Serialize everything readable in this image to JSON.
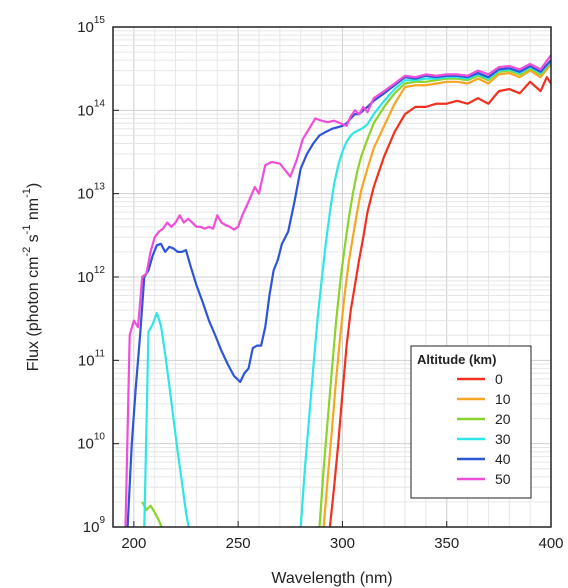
{
  "chart_data": {
    "type": "line",
    "xlabel": "Wavelength (nm)",
    "ylabel": {
      "parts": [
        "Flux (photon cm",
        "-2",
        " s",
        "-1",
        " nm",
        "-1",
        ")"
      ]
    },
    "xlim": [
      190,
      400
    ],
    "ylim": [
      1000000000.0,
      1000000000000000.0
    ],
    "yscale": "log",
    "grid": true,
    "xticks": [
      "200",
      "250",
      "300",
      "350",
      "400"
    ],
    "yticks": [
      {
        "base": "10",
        "exp": "9"
      },
      {
        "base": "10",
        "exp": "10"
      },
      {
        "base": "10",
        "exp": "11"
      },
      {
        "base": "10",
        "exp": "12"
      },
      {
        "base": "10",
        "exp": "13"
      },
      {
        "base": "10",
        "exp": "14"
      },
      {
        "base": "10",
        "exp": "15"
      }
    ],
    "legend": {
      "title": "Altitude (km)",
      "position": "bottom-right"
    },
    "series": [
      {
        "name": "0",
        "color": "#f2301f",
        "x": [
          294,
          296,
          298,
          300,
          302,
          304,
          306,
          308,
          310,
          312,
          315,
          320,
          325,
          330,
          335,
          340,
          345,
          350,
          355,
          360,
          365,
          370,
          375,
          380,
          385,
          390,
          395,
          398,
          400
        ],
        "y": [
          1000000000.0,
          3000000000.0,
          10000000000.0,
          40000000000.0,
          150000000000.0,
          400000000000.0,
          800000000000.0,
          1600000000000.0,
          3000000000000.0,
          6000000000000.0,
          12000000000000.0,
          28000000000000.0,
          55000000000000.0,
          90000000000000.0,
          110000000000000.0,
          110000000000000.0,
          120000000000000.0,
          120000000000000.0,
          130000000000000.0,
          120000000000000.0,
          140000000000000.0,
          120000000000000.0,
          170000000000000.0,
          180000000000000.0,
          160000000000000.0,
          220000000000000.0,
          170000000000000.0,
          250000000000000.0,
          210000000000000.0
        ]
      },
      {
        "name": "10",
        "color": "#f5a623",
        "x": [
          291,
          293,
          295,
          297,
          299,
          301,
          303,
          305,
          307,
          309,
          312,
          315,
          320,
          325,
          330,
          335,
          340,
          345,
          350,
          355,
          360,
          365,
          370,
          375,
          380,
          385,
          390,
          395,
          400
        ],
        "y": [
          1000000000.0,
          4000000000.0,
          15000000000.0,
          60000000000.0,
          200000000000.0,
          600000000000.0,
          1500000000000.0,
          3000000000000.0,
          6000000000000.0,
          11000000000000.0,
          20000000000000.0,
          35000000000000.0,
          65000000000000.0,
          120000000000000.0,
          190000000000000.0,
          200000000000000.0,
          200000000000000.0,
          210000000000000.0,
          220000000000000.0,
          220000000000000.0,
          210000000000000.0,
          240000000000000.0,
          210000000000000.0,
          270000000000000.0,
          280000000000000.0,
          250000000000000.0,
          300000000000000.0,
          250000000000000.0,
          360000000000000.0
        ]
      },
      {
        "name": "20",
        "color": "#8ad42a",
        "x": [
          204,
          206,
          208,
          210,
          212,
          214,
          null,
          289,
          291,
          293,
          295,
          297,
          299,
          301,
          303,
          305,
          307,
          309,
          312,
          315,
          320,
          325,
          330,
          335,
          340,
          345,
          350,
          355,
          360,
          365,
          370,
          375,
          380,
          385,
          390,
          395,
          400
        ],
        "y": [
          2000000000.0,
          1600000000.0,
          1800000000.0,
          1500000000.0,
          1200000000.0,
          900000000.0,
          null,
          1000000000.0,
          5000000000.0,
          20000000000.0,
          80000000000.0,
          300000000000.0,
          900000000000.0,
          2200000000000.0,
          5000000000000.0,
          10000000000000.0,
          18000000000000.0,
          28000000000000.0,
          45000000000000.0,
          70000000000000.0,
          110000000000000.0,
          160000000000000.0,
          210000000000000.0,
          220000000000000.0,
          220000000000000.0,
          230000000000000.0,
          240000000000000.0,
          240000000000000.0,
          230000000000000.0,
          260000000000000.0,
          230000000000000.0,
          290000000000000.0,
          300000000000000.0,
          270000000000000.0,
          320000000000000.0,
          270000000000000.0,
          380000000000000.0
        ]
      },
      {
        "name": "30",
        "color": "#2fe6e6",
        "x": [
          205,
          207,
          209,
          211,
          213,
          215,
          217,
          219,
          221,
          223,
          225,
          227,
          null,
          280,
          282,
          284,
          286,
          288,
          290,
          292,
          294,
          296,
          298,
          300,
          302,
          304,
          306,
          308,
          310,
          312,
          315,
          320,
          325,
          330,
          335,
          340,
          345,
          350,
          355,
          360,
          365,
          370,
          375,
          380,
          385,
          390,
          395,
          400
        ],
        "y": [
          1000000000.0,
          220000000000.0,
          270000000000.0,
          370000000000.0,
          260000000000.0,
          120000000000.0,
          50000000000.0,
          20000000000.0,
          8000000000.0,
          3500000000.0,
          1500000000.0,
          800000000.0,
          null,
          1000000000.0,
          5000000000.0,
          20000000000.0,
          80000000000.0,
          300000000000.0,
          900000000000.0,
          2500000000000.0,
          6000000000000.0,
          13000000000000.0,
          22000000000000.0,
          32000000000000.0,
          42000000000000.0,
          50000000000000.0,
          55000000000000.0,
          58000000000000.0,
          62000000000000.0,
          68000000000000.0,
          90000000000000.0,
          130000000000000.0,
          180000000000000.0,
          230000000000000.0,
          230000000000000.0,
          240000000000000.0,
          240000000000000.0,
          250000000000000.0,
          250000000000000.0,
          240000000000000.0,
          270000000000000.0,
          240000000000000.0,
          300000000000000.0,
          310000000000000.0,
          280000000000000.0,
          330000000000000.0,
          280000000000000.0,
          390000000000000.0
        ]
      },
      {
        "name": "40",
        "color": "#2d55d6",
        "x": [
          197,
          199,
          201,
          203,
          205,
          207,
          209,
          211,
          213,
          215,
          217,
          219,
          221,
          223,
          225,
          227,
          230,
          233,
          236,
          239,
          242,
          245,
          248,
          251,
          253,
          255,
          257,
          259,
          261,
          263,
          265,
          267,
          269,
          271,
          274,
          277,
          280,
          283,
          286,
          289,
          292,
          295,
          298,
          300,
          302,
          304,
          306,
          308,
          310,
          312,
          315,
          320,
          325,
          330,
          335,
          340,
          345,
          350,
          355,
          360,
          365,
          370,
          375,
          380,
          385,
          390,
          395,
          400
        ],
        "y": [
          1000000000.0,
          10000000000.0,
          50000000000.0,
          200000000000.0,
          1000000000000.0,
          1200000000000.0,
          1800000000000.0,
          2400000000000.0,
          2500000000000.0,
          2000000000000.0,
          2300000000000.0,
          2200000000000.0,
          2000000000000.0,
          2000000000000.0,
          2100000000000.0,
          1400000000000.0,
          800000000000.0,
          500000000000.0,
          300000000000.0,
          200000000000.0,
          130000000000.0,
          90000000000.0,
          65000000000.0,
          55000000000.0,
          70000000000.0,
          80000000000.0,
          140000000000.0,
          150000000000.0,
          150000000000.0,
          250000000000.0,
          600000000000.0,
          1200000000000.0,
          1600000000000.0,
          2500000000000.0,
          3500000000000.0,
          8000000000000.0,
          20000000000000.0,
          30000000000000.0,
          40000000000000.0,
          50000000000000.0,
          55000000000000.0,
          60000000000000.0,
          63000000000000.0,
          65000000000000.0,
          70000000000000.0,
          80000000000000.0,
          90000000000000.0,
          90000000000000.0,
          100000000000000.0,
          110000000000000.0,
          130000000000000.0,
          160000000000000.0,
          200000000000000.0,
          250000000000000.0,
          240000000000000.0,
          260000000000000.0,
          250000000000000.0,
          260000000000000.0,
          260000000000000.0,
          250000000000000.0,
          280000000000000.0,
          250000000000000.0,
          310000000000000.0,
          320000000000000.0,
          290000000000000.0,
          340000000000000.0,
          290000000000000.0,
          400000000000000.0
        ]
      },
      {
        "name": "50",
        "color": "#ef4fd8",
        "x": [
          196,
          198,
          200,
          202,
          204,
          206,
          208,
          210,
          212,
          214,
          216,
          218,
          220,
          222,
          224,
          226,
          228,
          230,
          232,
          234,
          236,
          238,
          240,
          242,
          244,
          246,
          248,
          250,
          252,
          255,
          258,
          260,
          263,
          266,
          270,
          275,
          278,
          281,
          284,
          287,
          290,
          293,
          296,
          299,
          302,
          304,
          306,
          308,
          310,
          312,
          315,
          320,
          325,
          330,
          335,
          340,
          345,
          350,
          355,
          360,
          365,
          370,
          375,
          380,
          385,
          390,
          395,
          400
        ],
        "y": [
          1000000000.0,
          200000000000.0,
          300000000000.0,
          250000000000.0,
          1000000000000.0,
          1100000000000.0,
          2000000000000.0,
          3000000000000.0,
          3500000000000.0,
          3800000000000.0,
          4500000000000.0,
          4000000000000.0,
          4500000000000.0,
          5500000000000.0,
          4500000000000.0,
          5000000000000.0,
          4500000000000.0,
          4000000000000.0,
          4000000000000.0,
          3800000000000.0,
          4000000000000.0,
          3800000000000.0,
          5500000000000.0,
          4500000000000.0,
          4200000000000.0,
          4000000000000.0,
          3700000000000.0,
          4000000000000.0,
          5500000000000.0,
          8000000000000.0,
          12000000000000.0,
          10000000000000.0,
          22000000000000.0,
          24000000000000.0,
          23000000000000.0,
          16000000000000.0,
          25000000000000.0,
          45000000000000.0,
          60000000000000.0,
          80000000000000.0,
          75000000000000.0,
          72000000000000.0,
          75000000000000.0,
          70000000000000.0,
          65000000000000.0,
          85000000000000.0,
          100000000000000.0,
          90000000000000.0,
          110000000000000.0,
          95000000000000.0,
          140000000000000.0,
          170000000000000.0,
          210000000000000.0,
          260000000000000.0,
          250000000000000.0,
          270000000000000.0,
          260000000000000.0,
          270000000000000.0,
          270000000000000.0,
          260000000000000.0,
          300000000000000.0,
          270000000000000.0,
          330000000000000.0,
          340000000000000.0,
          310000000000000.0,
          360000000000000.0,
          310000000000000.0,
          460000000000000.0
        ]
      }
    ]
  }
}
